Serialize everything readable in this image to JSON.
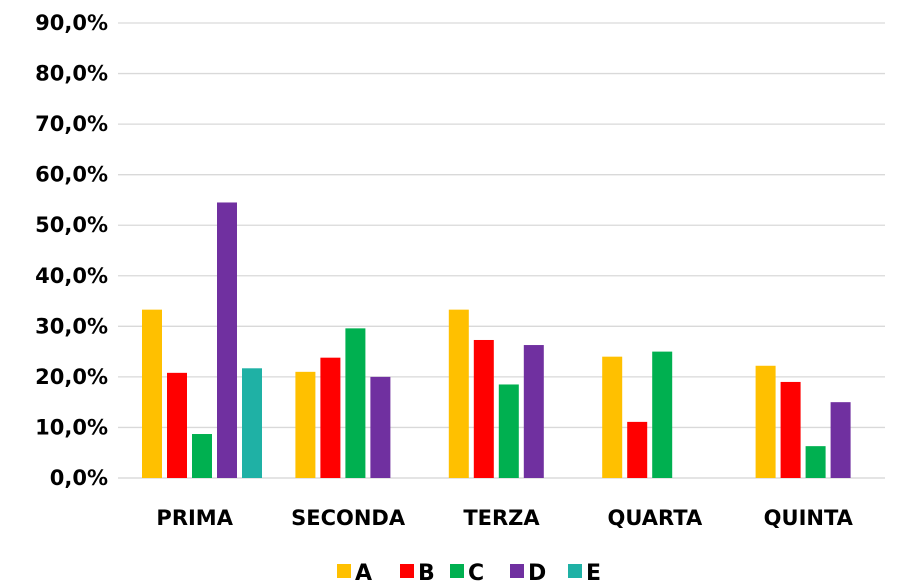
{
  "chart_data": {
    "type": "bar",
    "categories": [
      "PRIMA",
      "SECONDA",
      "TERZA",
      "QUARTA",
      "QUINTA"
    ],
    "series": [
      {
        "name": "A",
        "color": "#FFC000",
        "values": [
          33.3,
          21.0,
          33.3,
          24.0,
          22.2
        ]
      },
      {
        "name": "B",
        "color": "#FF0000",
        "values": [
          20.8,
          23.8,
          27.3,
          11.1,
          19.0
        ]
      },
      {
        "name": "C",
        "color": "#00B050",
        "values": [
          8.7,
          29.6,
          18.5,
          25.0,
          6.3
        ]
      },
      {
        "name": "D",
        "color": "#7030A0",
        "values": [
          54.5,
          20.0,
          26.3,
          null,
          15.0
        ]
      },
      {
        "name": "E",
        "color": "#1FB1A5",
        "values": [
          21.7,
          null,
          null,
          null,
          null
        ]
      }
    ],
    "yticks": [
      "0,0%",
      "10,0%",
      "20,0%",
      "30,0%",
      "40,0%",
      "50,0%",
      "60,0%",
      "70,0%",
      "80,0%",
      "90,0%"
    ],
    "ylim": [
      0,
      90
    ],
    "grid": true,
    "legend_position": "bottom"
  }
}
